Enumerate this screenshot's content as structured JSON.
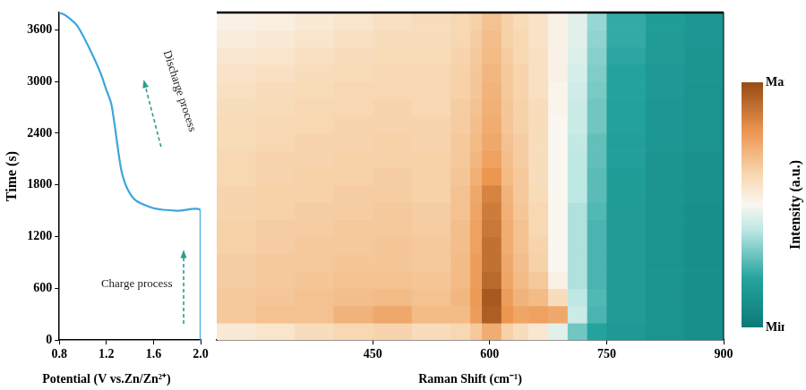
{
  "chart_data": [
    {
      "type": "line",
      "x_label": "Potential (V vs.Zn/Zn²⁺)",
      "y_label": "Time (s)",
      "x": [
        2.0,
        2.0,
        1.8,
        1.6,
        1.45,
        1.38,
        1.33,
        1.3,
        1.27,
        1.24,
        1.2,
        1.15,
        1.05,
        0.95,
        0.85,
        0.8
      ],
      "values": [
        0,
        1500,
        1500,
        1530,
        1620,
        1750,
        1950,
        2200,
        2500,
        2750,
        2900,
        3100,
        3400,
        3650,
        3770,
        3800
      ],
      "color": "#3aa6dd",
      "xlim": [
        0.8,
        2.0
      ],
      "xticks": [
        0.8,
        1.2,
        1.6,
        {
          "value": 2.0,
          "label": "2.0"
        }
      ],
      "ylim": [
        0,
        3800
      ],
      "yticks": [
        0,
        600,
        1200,
        1800,
        2400,
        3000,
        3600
      ],
      "annotations": [
        "Charge process",
        "Discharge process"
      ],
      "grid": false
    },
    {
      "type": "heatmap",
      "x_label": "Raman Shift (cm⁻¹)",
      "xlim": [
        250,
        900
      ],
      "xticks": [
        450,
        600,
        750,
        900
      ],
      "ylim": [
        0,
        3800
      ],
      "tick_labels": "x",
      "grid": false,
      "x_edges": [
        250,
        300,
        350,
        400,
        450,
        500,
        550,
        575,
        590,
        615,
        630,
        650,
        675,
        700,
        725,
        750,
        800,
        850,
        900
      ],
      "y_edges": [
        0,
        200,
        400,
        600,
        800,
        1000,
        1200,
        1400,
        1600,
        1800,
        2000,
        2200,
        2400,
        2600,
        2800,
        3000,
        3200,
        3400,
        3600,
        3800
      ],
      "cells": [
        [
          0.55,
          0.57,
          0.6,
          0.62,
          0.63,
          0.6,
          0.62,
          0.66,
          0.74,
          0.64,
          0.6,
          0.56,
          0.46,
          0.3,
          0.2,
          0.15,
          0.12,
          0.1
        ],
        [
          0.66,
          0.68,
          0.68,
          0.72,
          0.75,
          0.7,
          0.7,
          0.78,
          0.95,
          0.8,
          0.76,
          0.77,
          0.75,
          0.42,
          0.25,
          0.16,
          0.12,
          0.1
        ],
        [
          0.66,
          0.67,
          0.68,
          0.69,
          0.7,
          0.68,
          0.71,
          0.79,
          0.96,
          0.78,
          0.72,
          0.7,
          0.6,
          0.4,
          0.26,
          0.16,
          0.12,
          0.1
        ],
        [
          0.65,
          0.66,
          0.67,
          0.68,
          0.68,
          0.67,
          0.7,
          0.78,
          0.92,
          0.76,
          0.7,
          0.66,
          0.52,
          0.38,
          0.25,
          0.16,
          0.12,
          0.1
        ],
        [
          0.65,
          0.66,
          0.66,
          0.67,
          0.67,
          0.66,
          0.7,
          0.78,
          0.9,
          0.75,
          0.69,
          0.64,
          0.5,
          0.38,
          0.25,
          0.16,
          0.12,
          0.1
        ],
        [
          0.64,
          0.65,
          0.66,
          0.66,
          0.67,
          0.66,
          0.69,
          0.77,
          0.9,
          0.74,
          0.68,
          0.63,
          0.5,
          0.38,
          0.25,
          0.16,
          0.12,
          0.1
        ],
        [
          0.64,
          0.65,
          0.65,
          0.66,
          0.66,
          0.65,
          0.69,
          0.77,
          0.88,
          0.74,
          0.68,
          0.62,
          0.5,
          0.38,
          0.25,
          0.16,
          0.12,
          0.1
        ],
        [
          0.63,
          0.64,
          0.65,
          0.65,
          0.66,
          0.65,
          0.68,
          0.76,
          0.87,
          0.73,
          0.67,
          0.62,
          0.5,
          0.38,
          0.26,
          0.16,
          0.12,
          0.1
        ],
        [
          0.63,
          0.64,
          0.64,
          0.65,
          0.65,
          0.64,
          0.68,
          0.75,
          0.85,
          0.72,
          0.66,
          0.61,
          0.5,
          0.4,
          0.27,
          0.17,
          0.13,
          0.11
        ],
        [
          0.62,
          0.63,
          0.64,
          0.64,
          0.65,
          0.64,
          0.67,
          0.73,
          0.8,
          0.7,
          0.66,
          0.6,
          0.5,
          0.4,
          0.27,
          0.17,
          0.13,
          0.11
        ],
        [
          0.62,
          0.63,
          0.63,
          0.64,
          0.64,
          0.64,
          0.66,
          0.71,
          0.77,
          0.69,
          0.65,
          0.6,
          0.5,
          0.4,
          0.28,
          0.18,
          0.13,
          0.11
        ],
        [
          0.61,
          0.62,
          0.63,
          0.63,
          0.64,
          0.63,
          0.66,
          0.7,
          0.75,
          0.68,
          0.65,
          0.6,
          0.5,
          0.41,
          0.28,
          0.18,
          0.14,
          0.12
        ],
        [
          0.61,
          0.62,
          0.62,
          0.63,
          0.63,
          0.63,
          0.65,
          0.69,
          0.74,
          0.67,
          0.64,
          0.6,
          0.5,
          0.42,
          0.3,
          0.19,
          0.14,
          0.12
        ],
        [
          0.6,
          0.61,
          0.62,
          0.62,
          0.63,
          0.62,
          0.65,
          0.68,
          0.73,
          0.67,
          0.64,
          0.6,
          0.51,
          0.42,
          0.3,
          0.19,
          0.14,
          0.12
        ],
        [
          0.59,
          0.6,
          0.61,
          0.62,
          0.62,
          0.62,
          0.64,
          0.67,
          0.72,
          0.66,
          0.63,
          0.59,
          0.51,
          0.43,
          0.31,
          0.2,
          0.15,
          0.12
        ],
        [
          0.58,
          0.59,
          0.6,
          0.61,
          0.62,
          0.62,
          0.64,
          0.67,
          0.71,
          0.66,
          0.63,
          0.59,
          0.52,
          0.44,
          0.32,
          0.2,
          0.15,
          0.13
        ],
        [
          0.56,
          0.57,
          0.59,
          0.6,
          0.61,
          0.61,
          0.63,
          0.66,
          0.7,
          0.65,
          0.62,
          0.59,
          0.52,
          0.45,
          0.33,
          0.21,
          0.16,
          0.13
        ],
        [
          0.54,
          0.55,
          0.57,
          0.59,
          0.6,
          0.6,
          0.62,
          0.65,
          0.69,
          0.64,
          0.62,
          0.58,
          0.52,
          0.46,
          0.34,
          0.22,
          0.16,
          0.14
        ],
        [
          0.52,
          0.53,
          0.55,
          0.57,
          0.59,
          0.6,
          0.62,
          0.64,
          0.68,
          0.64,
          0.61,
          0.58,
          0.52,
          0.46,
          0.35,
          0.22,
          0.17,
          0.14
        ]
      ],
      "color_range": [
        0,
        1
      ],
      "color_ticks": [
        {
          "value": 0,
          "label": "Min"
        },
        {
          "value": 1,
          "label": "Max"
        }
      ],
      "color_label": "Intensity (a.u.)"
    }
  ]
}
